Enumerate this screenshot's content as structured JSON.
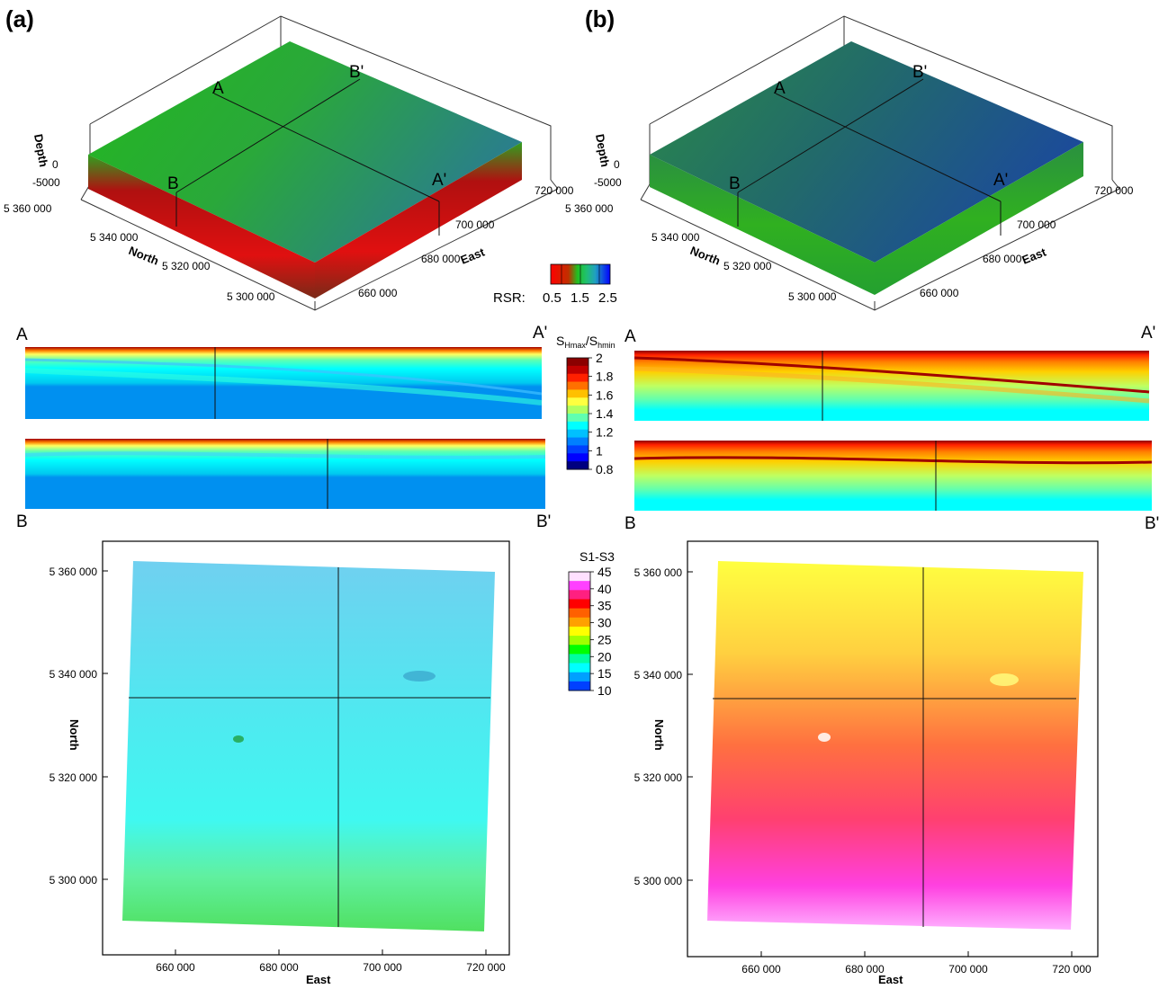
{
  "panels": [
    {
      "label": "(a)",
      "block": {
        "depth_title": "Depth",
        "depth_ticks": [
          "0",
          "-5000"
        ],
        "north_title": "North",
        "north_ticks": [
          "5 360 000",
          "5 340 000",
          "5 320 000",
          "5 300 000"
        ],
        "east_title": "East",
        "east_ticks": [
          "720 000",
          "700 000",
          "680 000",
          "660 000"
        ],
        "section_labels": [
          "A",
          "B'",
          "B",
          "A'"
        ]
      },
      "sections": {
        "labels": [
          "A",
          "A'",
          "B",
          "B'"
        ]
      },
      "map": {
        "north_title": "North",
        "east_title": "East",
        "north_ticks": [
          "5 360 000",
          "5 340 000",
          "5 320 000",
          "5 300 000"
        ],
        "east_ticks": [
          "660 000",
          "680 000",
          "700 000",
          "720 000"
        ]
      }
    },
    {
      "label": "(b)",
      "block": {
        "depth_title": "Depth",
        "depth_ticks": [
          "0",
          "-5000"
        ],
        "north_title": "North",
        "north_ticks": [
          "5 360 000",
          "5 340 000",
          "5 320 000",
          "5 300 000"
        ],
        "east_title": "East",
        "east_ticks": [
          "720 000",
          "700 000",
          "680 000",
          "660 000"
        ],
        "section_labels": [
          "A",
          "B'",
          "B",
          "A'"
        ]
      },
      "sections": {
        "labels": [
          "A",
          "A'",
          "B",
          "B'"
        ]
      },
      "map": {
        "north_title": "North",
        "east_title": "East",
        "north_ticks": [
          "5 360 000",
          "5 340 000",
          "5 320 000",
          "5 300 000"
        ],
        "east_ticks": [
          "660 000",
          "680 000",
          "700 000",
          "720 000"
        ]
      }
    }
  ],
  "legends": {
    "rsr": {
      "label": "RSR:",
      "ticks": [
        "0.5",
        "1.5",
        "2.5"
      ],
      "colors": [
        "#ff0000",
        "#ffff00",
        "#00b000",
        "#00d0d0",
        "#0000ff"
      ]
    },
    "shmax": {
      "label_main": "S",
      "label_sub1": "Hmax",
      "label_sep": "/S",
      "label_sub2": "hmin",
      "ticks": [
        "2",
        "1.8",
        "1.6",
        "1.4",
        "1.2",
        "1",
        "0.8"
      ],
      "colors": [
        "#8b0000",
        "#c00000",
        "#ff2000",
        "#ff7000",
        "#ffc000",
        "#ffff40",
        "#b0ff60",
        "#60ffb0",
        "#00ffff",
        "#00c0ff",
        "#0080ff",
        "#0040ff",
        "#0000ff",
        "#000080"
      ]
    },
    "s1s3": {
      "label": "S1-S3",
      "ticks": [
        "45",
        "40",
        "35",
        "30",
        "25",
        "20",
        "15",
        "10"
      ],
      "colors": [
        "#ffe0ff",
        "#ff40ff",
        "#ff2080",
        "#ff0000",
        "#ff6000",
        "#ffa000",
        "#ffff00",
        "#a0ff00",
        "#00ff00",
        "#00ffa0",
        "#00ffff",
        "#00a0ff",
        "#0040ff"
      ]
    }
  }
}
